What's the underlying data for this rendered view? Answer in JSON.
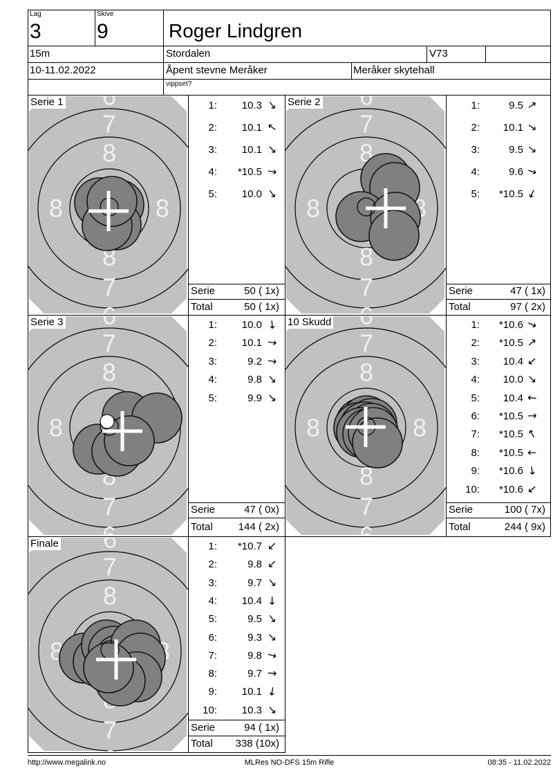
{
  "header": {
    "lag_label": "Lag",
    "lag_value": "3",
    "skive_label": "Skive",
    "skive_value": "9",
    "shooter_name": "Roger Lindgren",
    "distance": "15m",
    "club": "Stordalen",
    "class": "V73",
    "date": "10-11.02.2022",
    "event": "Åpent stevne Meråker",
    "venue": "Meråker skytehall",
    "vippset": "vippset?"
  },
  "labels": {
    "serie": "Serie",
    "total": "Total"
  },
  "target": {
    "ring_digit_outer": "7",
    "ring_digit_inner": "8",
    "ring_digit_clipped": "6",
    "colors": {
      "paper": "#c1c1c1",
      "shot": "#808080",
      "ring_line": "#000000",
      "digit": "#f0f0f0",
      "cross": "#ffffff"
    }
  },
  "panels": [
    {
      "title": "Serie 1",
      "shots": [
        {
          "no": "1:",
          "value": "10.3",
          "dir": 55
        },
        {
          "no": "2:",
          "value": "10.1",
          "dir": 215
        },
        {
          "no": "3:",
          "value": "10.1",
          "dir": 50
        },
        {
          "no": "4:",
          "value": "*10.5",
          "dir": 10
        },
        {
          "no": "5:",
          "value": "10.0",
          "dir": 55
        }
      ],
      "serie_sum": "50 ( 1x)",
      "total_sum": "50 ( 1x)",
      "impacts": [
        [
          -14,
          -8
        ],
        [
          14,
          -5
        ],
        [
          10,
          24
        ],
        [
          -3,
          25
        ],
        [
          4,
          -10
        ]
      ],
      "cross": [
        -1,
        4
      ]
    },
    {
      "title": "Serie 2",
      "shots": [
        {
          "no": "1:",
          "value": "9.5",
          "dir": 325
        },
        {
          "no": "2:",
          "value": "10.1",
          "dir": 35
        },
        {
          "no": "3:",
          "value": "9.5",
          "dir": 40
        },
        {
          "no": "4:",
          "value": "9.6",
          "dir": 20
        },
        {
          "no": "5:",
          "value": "*10.5",
          "dir": 115
        }
      ],
      "serie_sum": "47 ( 1x)",
      "total_sum": "97 ( 2x)",
      "impacts": [
        [
          28,
          -43
        ],
        [
          41,
          -30
        ],
        [
          -8,
          12
        ],
        [
          42,
          13
        ],
        [
          40,
          39
        ]
      ],
      "cross": [
        28,
        0
      ]
    },
    {
      "title": "Serie 3",
      "shots": [
        {
          "no": "1:",
          "value": "10.0",
          "dir": 85
        },
        {
          "no": "2:",
          "value": "10.1",
          "dir": 10
        },
        {
          "no": "3:",
          "value": "9.2",
          "dir": 10
        },
        {
          "no": "4:",
          "value": "9.8",
          "dir": 50
        },
        {
          "no": "5:",
          "value": "9.9",
          "dir": 48
        }
      ],
      "serie_sum": "47 ( 0x)",
      "total_sum": "144 ( 2x)",
      "impacts": [
        [
          26,
          -16
        ],
        [
          69,
          -14
        ],
        [
          -16,
          31
        ],
        [
          11,
          34
        ],
        [
          29,
          19
        ]
      ],
      "cross": [
        19,
        5
      ],
      "white_spot": [
        -3,
        -9
      ]
    },
    {
      "title": "10 Skudd",
      "shots": [
        {
          "no": "1:",
          "value": "*10.6",
          "dir": 25
        },
        {
          "no": "2:",
          "value": "*10.5",
          "dir": 320
        },
        {
          "no": "3:",
          "value": "10.4",
          "dir": 140
        },
        {
          "no": "4:",
          "value": "10.0",
          "dir": 45
        },
        {
          "no": "5:",
          "value": "10.4",
          "dir": 185
        },
        {
          "no": "6:",
          "value": "*10.5",
          "dir": 0
        },
        {
          "no": "7:",
          "value": "*10.5",
          "dir": 240
        },
        {
          "no": "8:",
          "value": "*10.5",
          "dir": 180
        },
        {
          "no": "9:",
          "value": "*10.6",
          "dir": 80
        },
        {
          "no": "10:",
          "value": "*10.6",
          "dir": 140
        }
      ],
      "serie_sum": "100 ( 7x)",
      "total_sum": "244 ( 9x)",
      "impacts": [
        [
          -8,
          -6
        ],
        [
          0,
          -10
        ],
        [
          8,
          -6
        ],
        [
          -11,
          0
        ],
        [
          -2,
          -1
        ],
        [
          7,
          1
        ],
        [
          -7,
          7
        ],
        [
          2,
          9
        ],
        [
          10,
          7
        ],
        [
          16,
          22
        ]
      ],
      "cross": [
        -1,
        -1
      ]
    },
    {
      "title": "Finale",
      "shots": [
        {
          "no": "1:",
          "value": "*10.7",
          "dir": 135
        },
        {
          "no": "2:",
          "value": "9.8",
          "dir": 135
        },
        {
          "no": "3:",
          "value": "9.7",
          "dir": 50
        },
        {
          "no": "4:",
          "value": "10.4",
          "dir": 90
        },
        {
          "no": "5:",
          "value": "9.5",
          "dir": 55
        },
        {
          "no": "6:",
          "value": "9.3",
          "dir": 45
        },
        {
          "no": "7:",
          "value": "9.8",
          "dir": 15
        },
        {
          "no": "8:",
          "value": "9.7",
          "dir": 5
        },
        {
          "no": "9:",
          "value": "10.1",
          "dir": 100
        },
        {
          "no": "10:",
          "value": "10.3",
          "dir": 50
        }
      ],
      "serie_sum": "94 ( 1x)",
      "total_sum": "338 (10x)",
      "impacts": [
        [
          -37,
          10
        ],
        [
          -17,
          15
        ],
        [
          -5,
          -9
        ],
        [
          5,
          0
        ],
        [
          14,
          12
        ],
        [
          37,
          -9
        ],
        [
          44,
          10
        ],
        [
          39,
          37
        ],
        [
          15,
          43
        ],
        [
          -2,
          24
        ]
      ],
      "cross": [
        9,
        12
      ]
    }
  ],
  "footer": {
    "left": "http://www.megalink.no",
    "center": "MLRes NO-DFS 15m Rifle",
    "right": "08:35 - 11.02.2022"
  }
}
